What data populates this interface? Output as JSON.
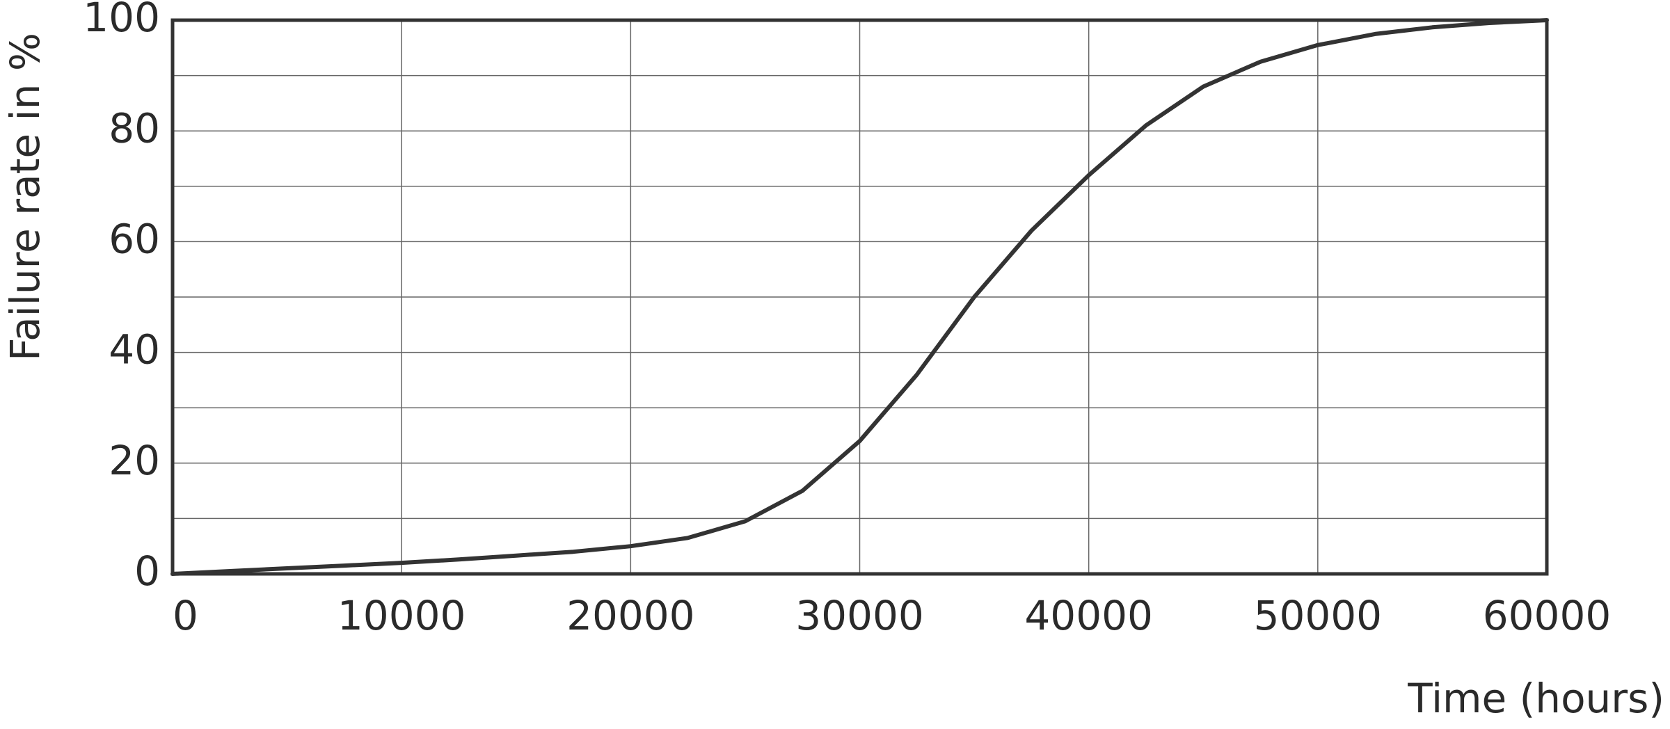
{
  "chart_data": {
    "type": "line",
    "x_label": "Time (hours)",
    "y_label": "Failure rate in %",
    "x": [
      0,
      2500,
      5000,
      7500,
      10000,
      12500,
      15000,
      17500,
      20000,
      22500,
      25000,
      27500,
      30000,
      32500,
      35000,
      37500,
      40000,
      42500,
      45000,
      47500,
      50000,
      52500,
      55000,
      57500,
      60000
    ],
    "series": [
      {
        "color": "#333333",
        "values": [
          0,
          0.5,
          1,
          1.5,
          2,
          2.6,
          3.3,
          4,
          5,
          6.5,
          9.5,
          15,
          24,
          36,
          50,
          62,
          72,
          81,
          88,
          92.5,
          95.5,
          97.5,
          98.7,
          99.5,
          100
        ]
      }
    ],
    "xlim": [
      0,
      60000
    ],
    "ylim": [
      0,
      100
    ],
    "xticks": [
      0,
      10000,
      20000,
      30000,
      40000,
      50000,
      60000
    ],
    "yticks": [
      0,
      20,
      40,
      60,
      80,
      100
    ],
    "y_minor_grid": [
      10,
      30,
      50,
      70,
      90
    ],
    "grid": true
  }
}
